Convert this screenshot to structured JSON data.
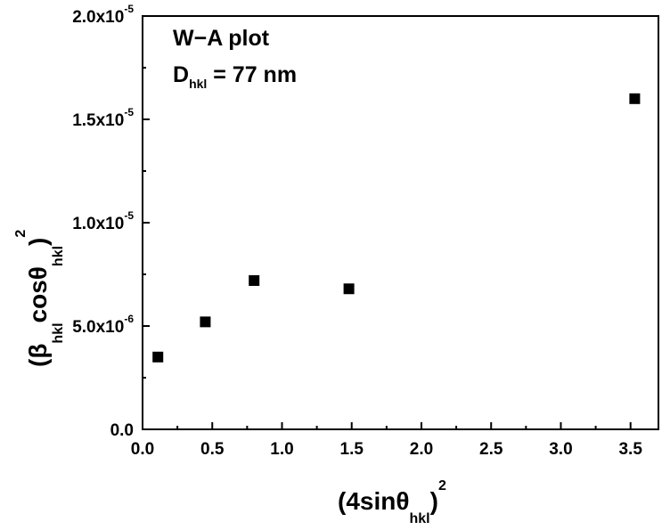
{
  "chart_data": {
    "type": "scatter",
    "title": "",
    "x": [
      0.11,
      0.45,
      0.8,
      1.48,
      3.53
    ],
    "y": [
      3.5e-06,
      5.2e-06,
      7.2e-06,
      6.8e-06,
      1.6e-05
    ],
    "xlim": [
      0,
      3.7
    ],
    "ylim": [
      0,
      2e-05
    ],
    "x_ticks": [
      {
        "value": 0.0,
        "label": "0.0"
      },
      {
        "value": 0.5,
        "label": "0.5"
      },
      {
        "value": 1.0,
        "label": "1.0"
      },
      {
        "value": 1.5,
        "label": "1.5"
      },
      {
        "value": 2.0,
        "label": "2.0"
      },
      {
        "value": 2.5,
        "label": "2.5"
      },
      {
        "value": 3.0,
        "label": "3.0"
      },
      {
        "value": 3.5,
        "label": "3.5"
      }
    ],
    "y_ticks": [
      {
        "value": 0,
        "mant": "0.0",
        "exp": ""
      },
      {
        "value": 5e-06,
        "mant": "5.0x10",
        "exp": "-6"
      },
      {
        "value": 1e-05,
        "mant": "1.0x10",
        "exp": "-5"
      },
      {
        "value": 1.5e-05,
        "mant": "1.5x10",
        "exp": "-5"
      },
      {
        "value": 2e-05,
        "mant": "2.0x10",
        "exp": "-5"
      }
    ],
    "xlabel": {
      "open": "(4sinθ",
      "sub": "hkl",
      "close": ")",
      "sup": "2"
    },
    "ylabel": {
      "open": "(β",
      "sub1": "hkl",
      "mid": "cosθ",
      "sub2": "hkl",
      "close": ")",
      "sup": "2"
    },
    "annotations": [
      {
        "text": "W−A plot"
      },
      {
        "main": "D",
        "sub": "hkl",
        "rest": " = 77 nm"
      }
    ],
    "marker": "filled-square",
    "grid": false,
    "legend": "none",
    "colors": {
      "marker": "#000000",
      "axis": "#000000"
    }
  }
}
